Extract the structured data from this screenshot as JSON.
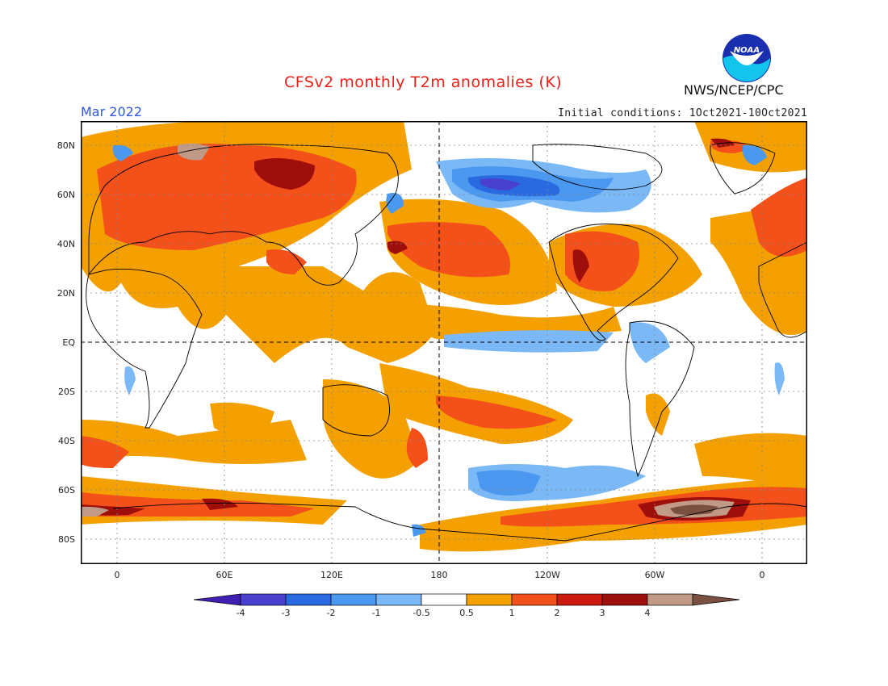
{
  "header": {
    "title": "CFSv2 monthly T2m anomalies (K)",
    "period": "Mar 2022",
    "initial_conditions": "Initial conditions: 1Oct2021-10Oct2021",
    "agency": "NWS/NCEP/CPC",
    "logo_text": "NOAA"
  },
  "map": {
    "lat_labels": [
      "80N",
      "60N",
      "40N",
      "20N",
      "EQ",
      "20S",
      "40S",
      "60S",
      "80S"
    ],
    "lon_labels": [
      "0",
      "60E",
      "120E",
      "180",
      "120W",
      "60W",
      "0"
    ]
  },
  "colorbar": {
    "labels": [
      "-4",
      "-3",
      "-2",
      "-1",
      "-0.5",
      "0.5",
      "1",
      "2",
      "3",
      "4"
    ],
    "colors": [
      "#4020b0",
      "#4a40d0",
      "#2a6ae0",
      "#4a98f0",
      "#7ab8f6",
      "#ffffff",
      "#f4a000",
      "#f4501a",
      "#cc1a10",
      "#9e0e0a",
      "#c09a86",
      "#7a5040"
    ]
  }
}
